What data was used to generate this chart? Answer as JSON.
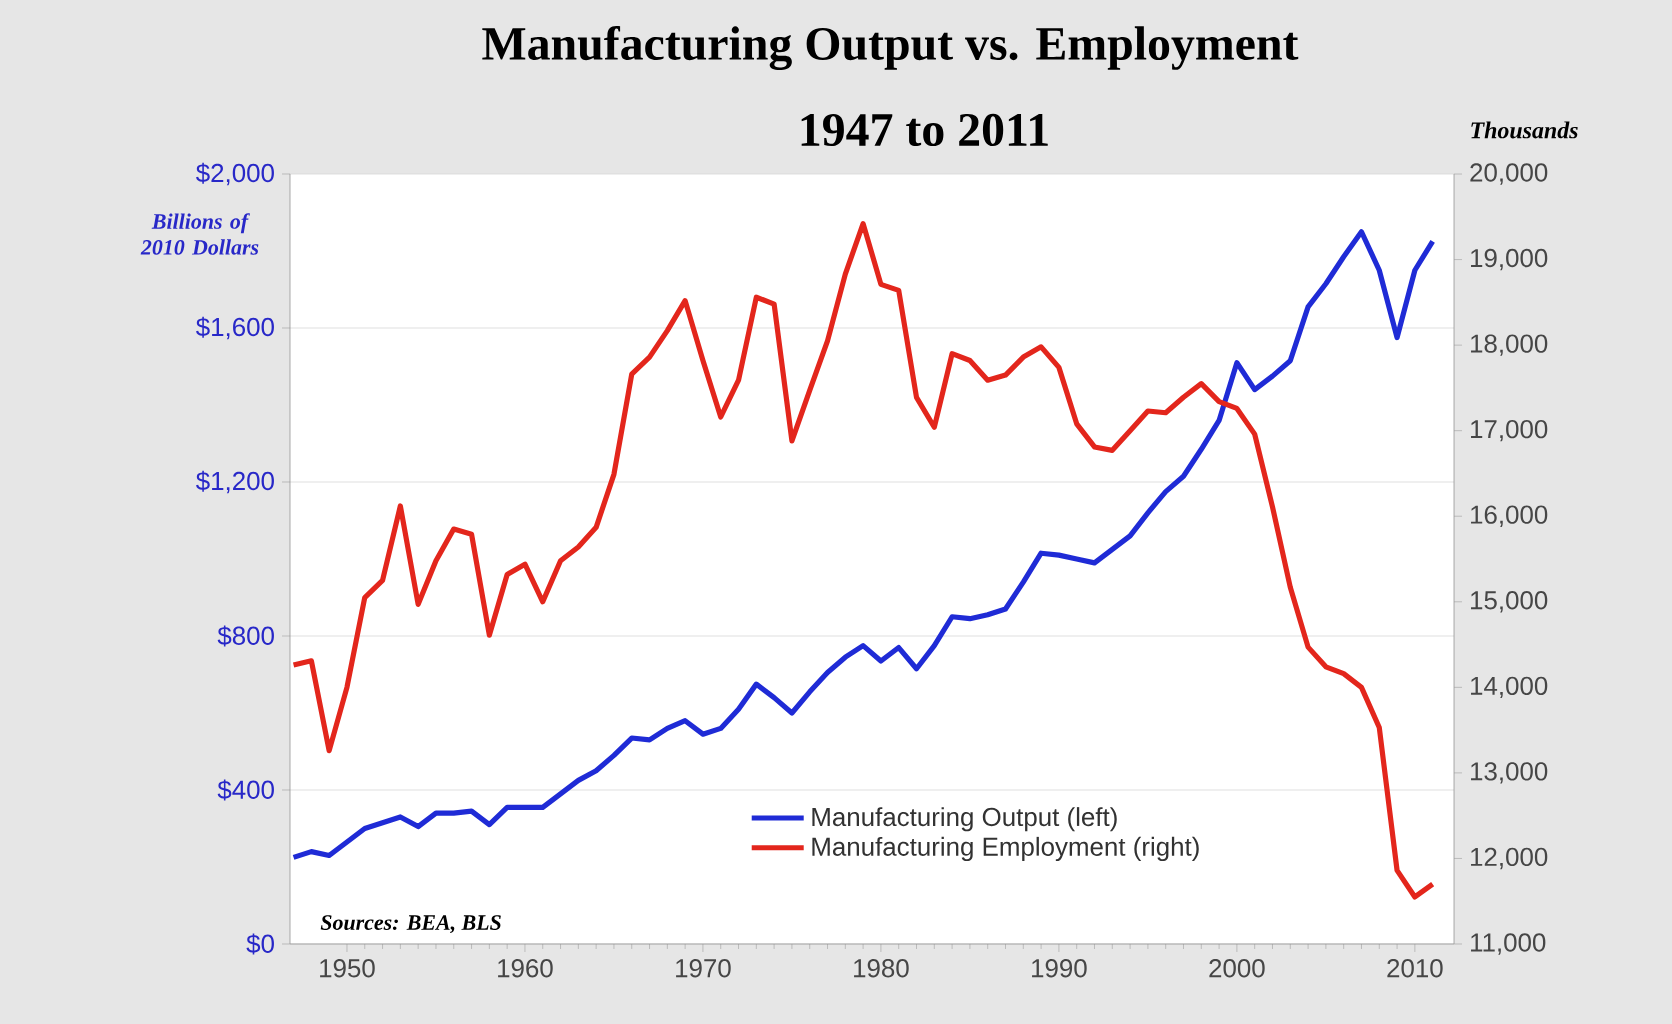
{
  "chart_data": {
    "type": "line",
    "title": "Manufacturing Output vs. Employment",
    "subtitle": "1947 to 2011",
    "ylabel": "Billions of 2010 Dollars",
    "y2label": "Thousands",
    "annotations": [
      "Sources: BEA, BLS"
    ],
    "x": [
      1947,
      1948,
      1949,
      1950,
      1951,
      1952,
      1953,
      1954,
      1955,
      1956,
      1957,
      1958,
      1959,
      1960,
      1961,
      1962,
      1963,
      1964,
      1965,
      1966,
      1967,
      1968,
      1969,
      1970,
      1971,
      1972,
      1973,
      1974,
      1975,
      1976,
      1977,
      1978,
      1979,
      1980,
      1981,
      1982,
      1983,
      1984,
      1985,
      1986,
      1987,
      1988,
      1989,
      1990,
      1991,
      1992,
      1993,
      1994,
      1995,
      1996,
      1997,
      1998,
      1999,
      2000,
      2001,
      2002,
      2003,
      2004,
      2005,
      2006,
      2007,
      2008,
      2009,
      2010,
      2011
    ],
    "series": [
      {
        "name": "Manufacturing Output (left)",
        "color": "#1f2bd6",
        "values": [
          225,
          240,
          230,
          265,
          300,
          315,
          330,
          305,
          340,
          340,
          345,
          310,
          355,
          355,
          355,
          390,
          425,
          450,
          490,
          535,
          530,
          560,
          580,
          545,
          560,
          610,
          675,
          640,
          600,
          655,
          705,
          745,
          775,
          735,
          770,
          715,
          775,
          850,
          845,
          855,
          870,
          940,
          1015,
          1010,
          1000,
          990,
          1025,
          1060,
          1120,
          1175,
          1215,
          1285,
          1360,
          1510,
          1440,
          1475,
          1515,
          1655,
          1715,
          1785,
          1850,
          1750,
          1575,
          1750,
          1825
        ]
      },
      {
        "name": "Manufacturing Employment (right)",
        "color": "#e3261c",
        "axis": "y2",
        "values": [
          14260,
          14310,
          13260,
          14000,
          15050,
          15250,
          16120,
          14970,
          15480,
          15850,
          15790,
          14610,
          15320,
          15440,
          15000,
          15480,
          15640,
          15870,
          16490,
          17660,
          17860,
          18170,
          18520,
          17820,
          17160,
          17590,
          18560,
          18480,
          16880,
          17470,
          18050,
          18830,
          19420,
          18710,
          18640,
          17390,
          17040,
          17900,
          17820,
          17590,
          17650,
          17860,
          17980,
          17740,
          17080,
          16810,
          16770,
          17000,
          17230,
          17210,
          17390,
          17550,
          17340,
          17260,
          16960,
          16110,
          15170,
          14470,
          14240,
          14160,
          14000,
          13530,
          11860,
          11550,
          11700
        ]
      }
    ],
    "xlim": [
      1946.8,
      2012.2
    ],
    "xticks": [
      1950,
      1960,
      1970,
      1980,
      1990,
      2000,
      2010
    ],
    "ylim": [
      0,
      2000
    ],
    "yticks": [
      {
        "value": 0,
        "label": "$0"
      },
      {
        "value": 400,
        "label": "$400"
      },
      {
        "value": 800,
        "label": "$800"
      },
      {
        "value": 1200,
        "label": "$1,200"
      },
      {
        "value": 1600,
        "label": "$1,600"
      },
      {
        "value": 2000,
        "label": "$2,000"
      }
    ],
    "y2lim": [
      11000,
      20000
    ],
    "y2ticks": [
      {
        "value": 11000,
        "label": "11,000"
      },
      {
        "value": 12000,
        "label": "12,000"
      },
      {
        "value": 13000,
        "label": "13,000"
      },
      {
        "value": 14000,
        "label": "14,000"
      },
      {
        "value": 15000,
        "label": "15,000"
      },
      {
        "value": 16000,
        "label": "16,000"
      },
      {
        "value": 17000,
        "label": "17,000"
      },
      {
        "value": 18000,
        "label": "18,000"
      },
      {
        "value": 19000,
        "label": "19,000"
      },
      {
        "value": 20000,
        "label": "20,000"
      }
    ],
    "grid": "y",
    "legend": "bottom",
    "marker": "none",
    "line_style": "solid"
  }
}
